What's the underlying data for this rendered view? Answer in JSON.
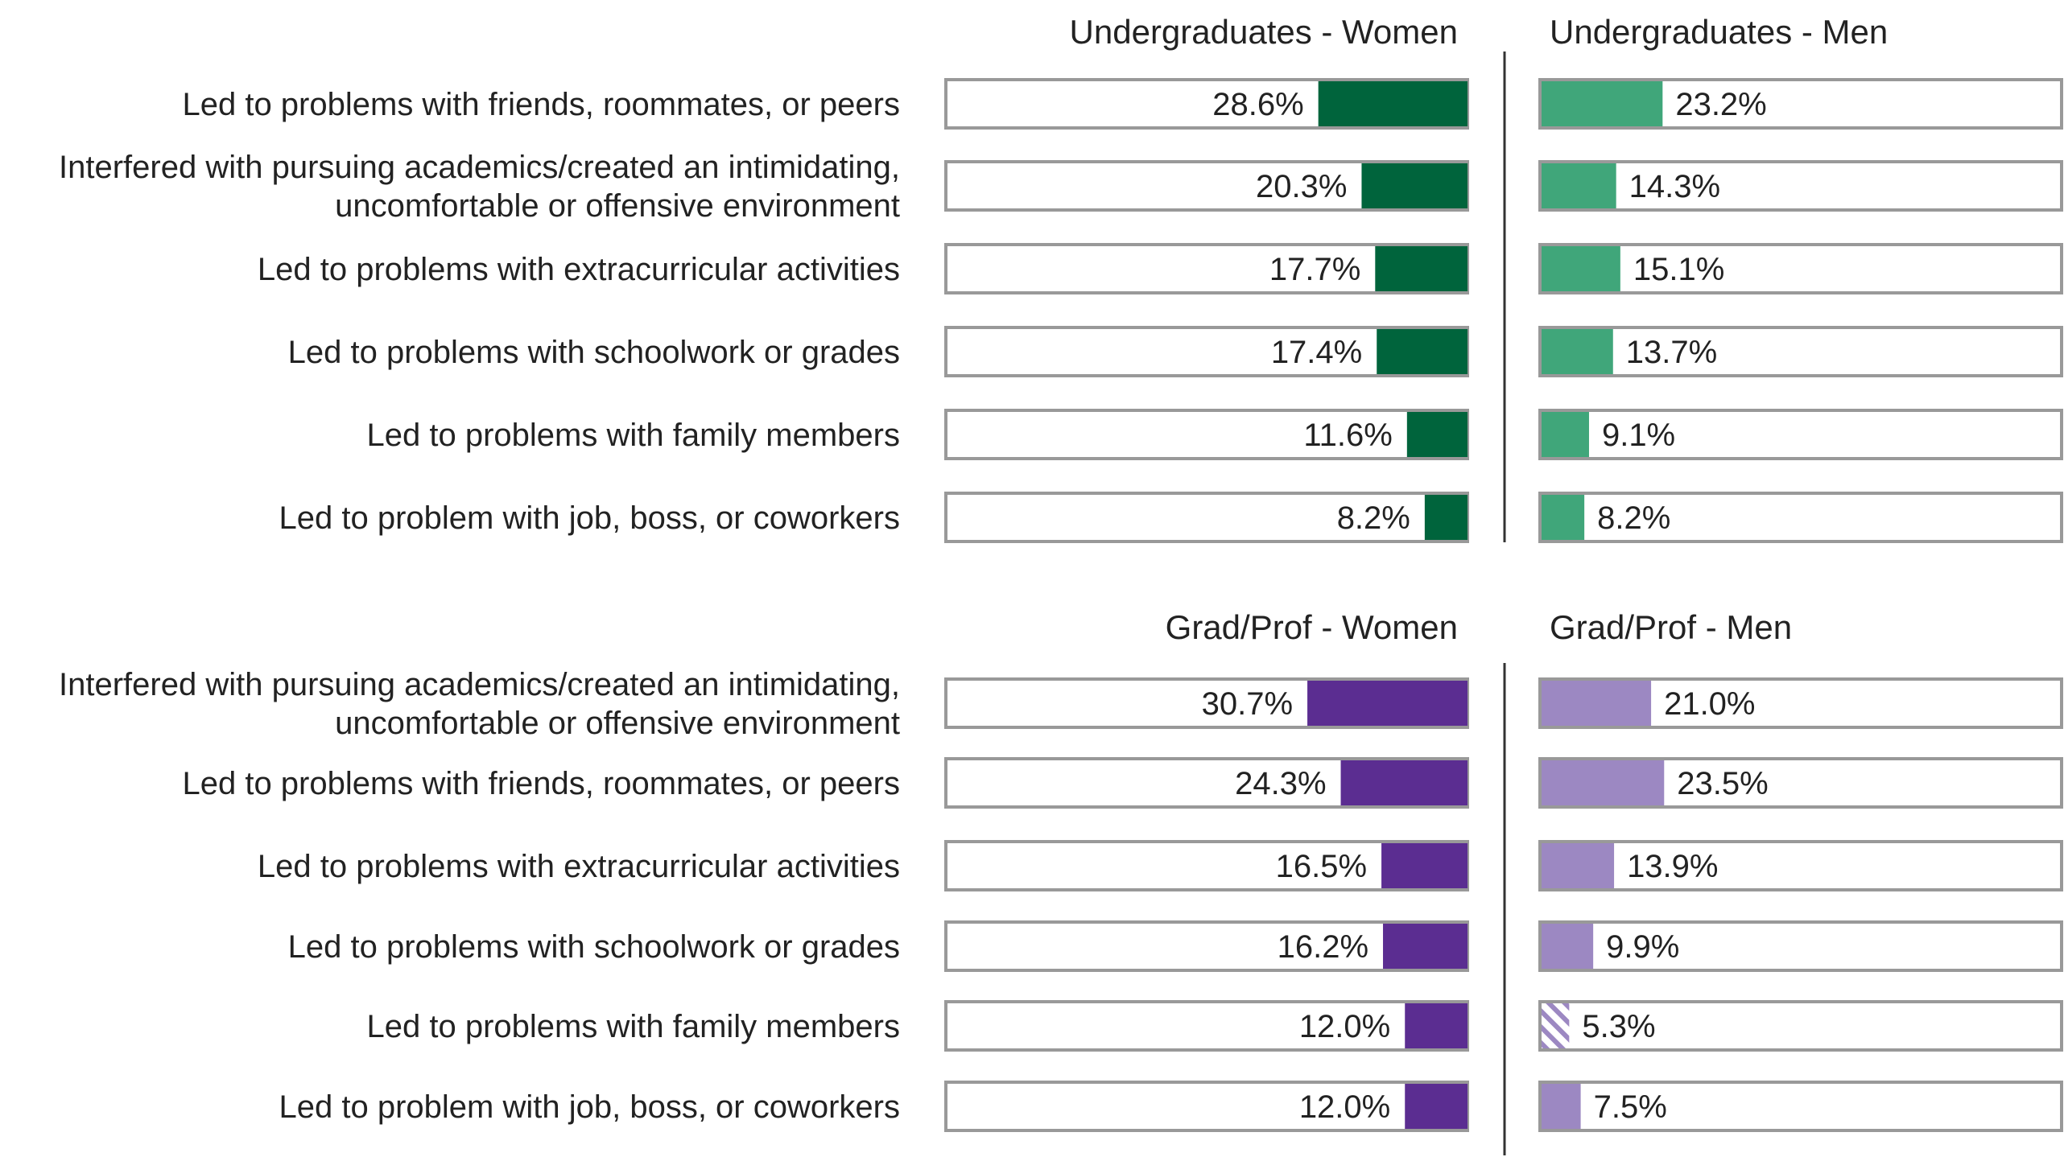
{
  "chart_data": {
    "type": "bar",
    "colors": {
      "ug_women": "#00643c",
      "ug_men": "#40a67a",
      "gp_women": "#5b2d91",
      "gp_men": "#9c88c2",
      "frame": "#999999",
      "divider": "#333333"
    },
    "value_max": 100,
    "panels": [
      {
        "section": "undergraduates",
        "title_women": "Undergraduates - Women",
        "title_men": "Undergraduates - Men",
        "rows": [
          {
            "label": [
              "Led to problems with friends, roommates, or peers"
            ],
            "women": 28.6,
            "women_label": "28.6%",
            "men": 23.2,
            "men_label": "23.2%",
            "men_hatched": false
          },
          {
            "label": [
              "Interfered with pursuing academics/created an intimidating,",
              "uncomfortable or offensive environment"
            ],
            "women": 20.3,
            "women_label": "20.3%",
            "men": 14.3,
            "men_label": "14.3%",
            "men_hatched": false
          },
          {
            "label": [
              "Led to problems with extracurricular activities"
            ],
            "women": 17.7,
            "women_label": "17.7%",
            "men": 15.1,
            "men_label": "15.1%",
            "men_hatched": false
          },
          {
            "label": [
              "Led to problems with schoolwork or grades"
            ],
            "women": 17.4,
            "women_label": "17.4%",
            "men": 13.7,
            "men_label": "13.7%",
            "men_hatched": false
          },
          {
            "label": [
              "Led to problems with family members"
            ],
            "women": 11.6,
            "women_label": "11.6%",
            "men": 9.1,
            "men_label": "9.1%",
            "men_hatched": false
          },
          {
            "label": [
              "Led to problem with job, boss, or coworkers"
            ],
            "women": 8.2,
            "women_label": "8.2%",
            "men": 8.2,
            "men_label": "8.2%",
            "men_hatched": false
          }
        ]
      },
      {
        "section": "grad_prof",
        "title_women": "Grad/Prof - Women",
        "title_men": "Grad/Prof - Men",
        "rows": [
          {
            "label": [
              "Interfered with pursuing academics/created an intimidating,",
              "uncomfortable or offensive environment"
            ],
            "women": 30.7,
            "women_label": "30.7%",
            "men": 21.0,
            "men_label": "21.0%",
            "men_hatched": false
          },
          {
            "label": [
              "Led to problems with friends, roommates, or peers"
            ],
            "women": 24.3,
            "women_label": "24.3%",
            "men": 23.5,
            "men_label": "23.5%",
            "men_hatched": false
          },
          {
            "label": [
              "Led to problems with extracurricular activities"
            ],
            "women": 16.5,
            "women_label": "16.5%",
            "men": 13.9,
            "men_label": "13.9%",
            "men_hatched": false
          },
          {
            "label": [
              "Led to problems with schoolwork or grades"
            ],
            "women": 16.2,
            "women_label": "16.2%",
            "men": 9.9,
            "men_label": "9.9%",
            "men_hatched": false
          },
          {
            "label": [
              "Led to problems with family members"
            ],
            "women": 12.0,
            "women_label": "12.0%",
            "men": 5.3,
            "men_label": "5.3%",
            "men_hatched": true
          },
          {
            "label": [
              "Led to problem with job, boss, or coworkers"
            ],
            "women": 12.0,
            "women_label": "12.0%",
            "men": 7.5,
            "men_label": "7.5%",
            "men_hatched": false
          }
        ]
      }
    ]
  }
}
